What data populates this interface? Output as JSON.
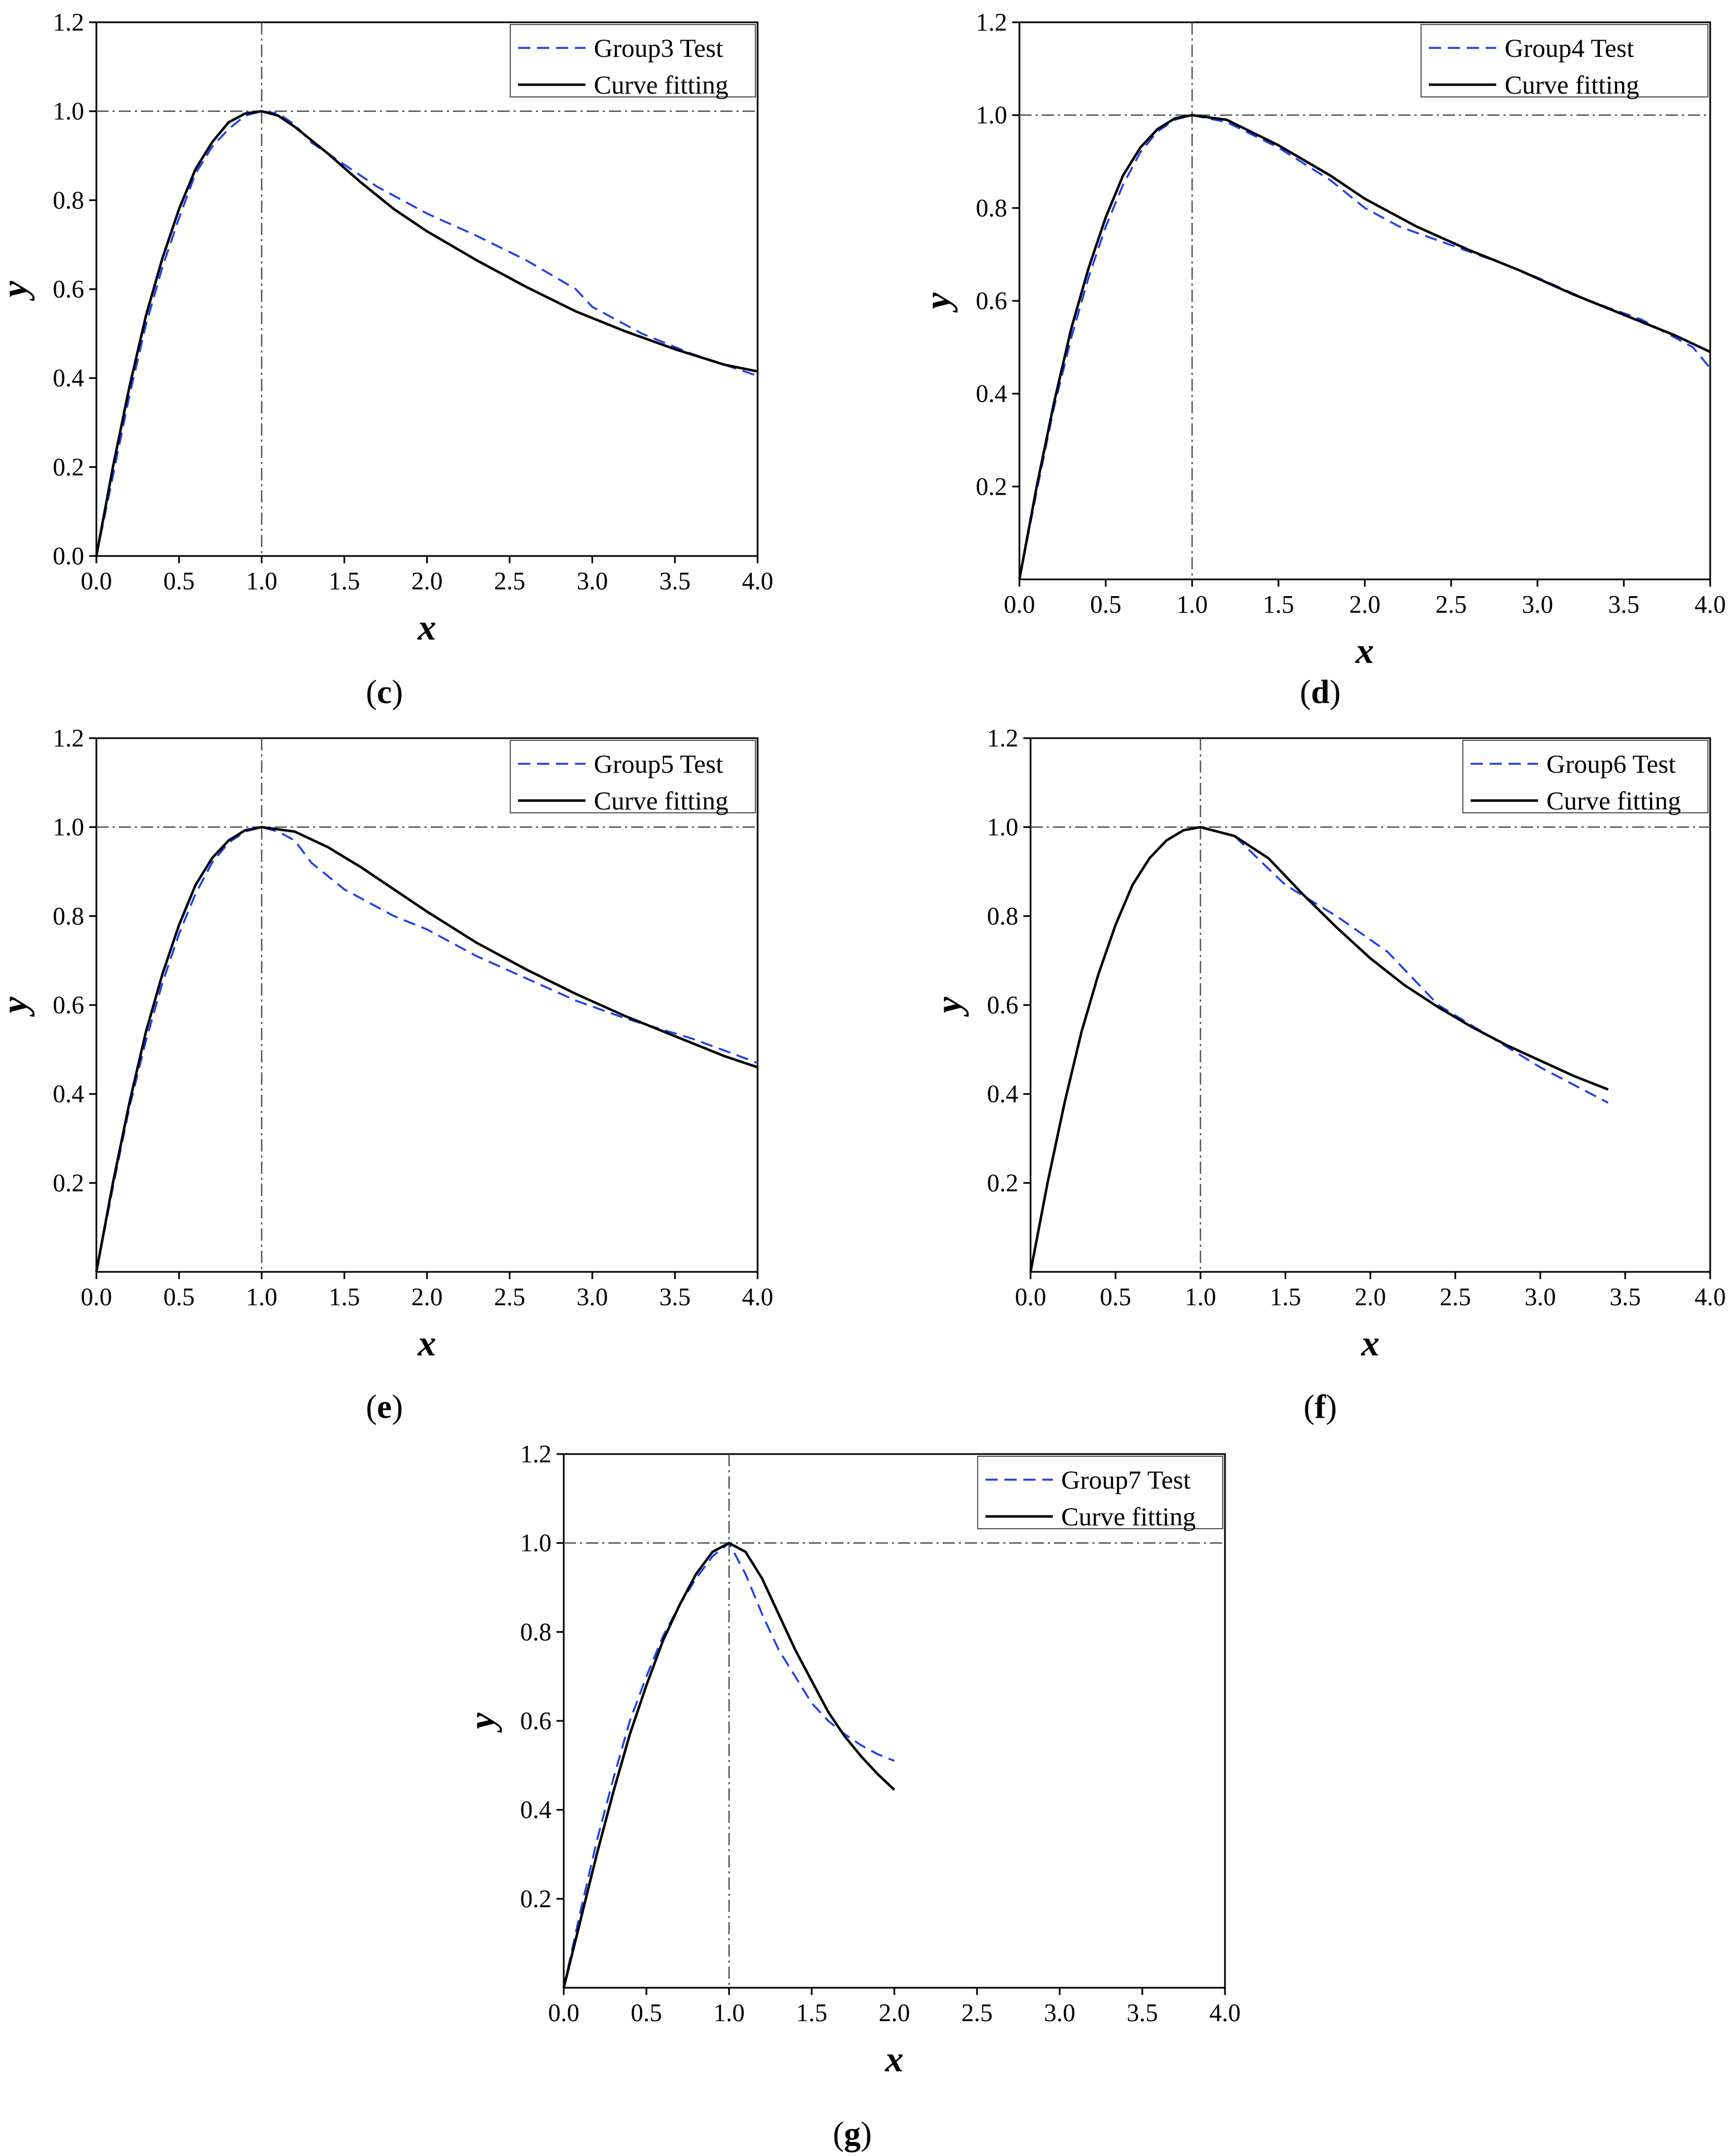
{
  "colors": {
    "test": "#1f3ff0",
    "fit": "#000000",
    "ref": "#555555",
    "axis": "#000000"
  },
  "chart_data": [
    {
      "id": "c",
      "type": "line",
      "caption": "c",
      "xlabel": "x",
      "ylabel": "y",
      "xlim": [
        0,
        4
      ],
      "ylim": [
        0,
        1.2
      ],
      "xticks": [
        "0.0",
        "0.5",
        "1.0",
        "1.5",
        "2.0",
        "2.5",
        "3.0",
        "3.5",
        "4.0"
      ],
      "yticks": [
        "0.0",
        "0.2",
        "0.4",
        "0.6",
        "0.8",
        "1.0",
        "1.2"
      ],
      "reference_lines": {
        "x": 1.0,
        "y": 1.0
      },
      "legend": {
        "position": "top-right",
        "entries": [
          "Group3 Test",
          "Curve fitting"
        ]
      },
      "series": [
        {
          "name": "Group3 Test",
          "style": "dashed",
          "x": [
            0,
            0.1,
            0.2,
            0.3,
            0.4,
            0.5,
            0.6,
            0.7,
            0.8,
            0.9,
            1.0,
            1.1,
            1.2,
            1.3,
            1.5,
            1.7,
            2.0,
            2.3,
            2.6,
            2.9,
            3.0,
            3.3,
            3.6,
            4.0
          ],
          "y": [
            0,
            0.18,
            0.36,
            0.52,
            0.65,
            0.76,
            0.86,
            0.92,
            0.96,
            0.99,
            1.0,
            0.995,
            0.97,
            0.93,
            0.88,
            0.83,
            0.77,
            0.72,
            0.665,
            0.6,
            0.56,
            0.5,
            0.455,
            0.405
          ]
        },
        {
          "name": "Curve fitting",
          "style": "solid",
          "x": [
            0,
            0.1,
            0.2,
            0.3,
            0.4,
            0.5,
            0.6,
            0.7,
            0.8,
            0.9,
            1.0,
            1.1,
            1.2,
            1.4,
            1.6,
            1.8,
            2.0,
            2.3,
            2.6,
            2.9,
            3.2,
            3.5,
            3.8,
            4.0
          ],
          "y": [
            0,
            0.2,
            0.38,
            0.54,
            0.67,
            0.78,
            0.87,
            0.93,
            0.975,
            0.995,
            1.0,
            0.99,
            0.965,
            0.905,
            0.84,
            0.78,
            0.73,
            0.665,
            0.605,
            0.55,
            0.505,
            0.465,
            0.43,
            0.415
          ]
        }
      ]
    },
    {
      "id": "d",
      "type": "line",
      "caption": "d",
      "xlabel": "x",
      "ylabel": "y",
      "xlim": [
        0,
        4
      ],
      "ylim": [
        0,
        1.2
      ],
      "xticks": [
        "0.0",
        "0.5",
        "1.0",
        "1.5",
        "2.0",
        "2.5",
        "3.0",
        "3.5",
        "4.0"
      ],
      "yticks": [
        "0.2",
        "0.4",
        "0.6",
        "0.8",
        "1.0",
        "1.2"
      ],
      "reference_lines": {
        "x": 1.0,
        "y": 1.0
      },
      "legend": {
        "position": "top-right",
        "entries": [
          "Group4 Test",
          "Curve fitting"
        ]
      },
      "series": [
        {
          "name": "Group4 Test",
          "style": "dashed",
          "x": [
            0,
            0.1,
            0.2,
            0.3,
            0.4,
            0.5,
            0.6,
            0.7,
            0.8,
            0.9,
            1.0,
            1.2,
            1.5,
            1.8,
            2.0,
            2.2,
            2.5,
            2.8,
            3.0,
            3.3,
            3.6,
            3.9,
            4.0
          ],
          "y": [
            0,
            0.19,
            0.37,
            0.52,
            0.65,
            0.76,
            0.85,
            0.92,
            0.965,
            0.99,
            1.0,
            0.985,
            0.93,
            0.86,
            0.8,
            0.76,
            0.72,
            0.68,
            0.65,
            0.6,
            0.56,
            0.5,
            0.455
          ]
        },
        {
          "name": "Curve fitting",
          "style": "solid",
          "x": [
            0,
            0.1,
            0.2,
            0.3,
            0.4,
            0.5,
            0.6,
            0.7,
            0.8,
            0.9,
            1.0,
            1.2,
            1.5,
            1.8,
            2.0,
            2.3,
            2.6,
            2.9,
            3.2,
            3.5,
            3.8,
            4.0
          ],
          "y": [
            0,
            0.2,
            0.38,
            0.54,
            0.67,
            0.78,
            0.87,
            0.93,
            0.97,
            0.993,
            1.0,
            0.99,
            0.935,
            0.87,
            0.82,
            0.76,
            0.71,
            0.665,
            0.615,
            0.57,
            0.525,
            0.49
          ]
        }
      ]
    },
    {
      "id": "e",
      "type": "line",
      "caption": "e",
      "xlabel": "x",
      "ylabel": "y",
      "xlim": [
        0,
        4
      ],
      "ylim": [
        0,
        1.2
      ],
      "xticks": [
        "0.0",
        "0.5",
        "1.0",
        "1.5",
        "2.0",
        "2.5",
        "3.0",
        "3.5",
        "4.0"
      ],
      "yticks": [
        "0.2",
        "0.4",
        "0.6",
        "0.8",
        "1.0",
        "1.2"
      ],
      "reference_lines": {
        "x": 1.0,
        "y": 1.0
      },
      "legend": {
        "position": "top-right",
        "entries": [
          "Group5 Test",
          "Curve fitting"
        ]
      },
      "series": [
        {
          "name": "Group5 Test",
          "style": "dashed",
          "x": [
            0,
            0.1,
            0.2,
            0.3,
            0.4,
            0.5,
            0.6,
            0.7,
            0.8,
            0.9,
            1.0,
            1.1,
            1.2,
            1.3,
            1.5,
            1.8,
            2.0,
            2.3,
            2.6,
            2.9,
            3.2,
            3.6,
            4.0
          ],
          "y": [
            0,
            0.19,
            0.37,
            0.52,
            0.65,
            0.76,
            0.85,
            0.92,
            0.965,
            0.99,
            1.0,
            0.99,
            0.97,
            0.92,
            0.86,
            0.8,
            0.77,
            0.71,
            0.66,
            0.61,
            0.57,
            0.525,
            0.47
          ]
        },
        {
          "name": "Curve fitting",
          "style": "solid",
          "x": [
            0,
            0.1,
            0.2,
            0.3,
            0.4,
            0.5,
            0.6,
            0.7,
            0.8,
            0.9,
            1.0,
            1.2,
            1.4,
            1.6,
            1.8,
            2.0,
            2.3,
            2.6,
            2.9,
            3.2,
            3.5,
            3.8,
            4.0
          ],
          "y": [
            0,
            0.2,
            0.38,
            0.54,
            0.67,
            0.78,
            0.87,
            0.93,
            0.97,
            0.993,
            1.0,
            0.99,
            0.955,
            0.91,
            0.86,
            0.81,
            0.74,
            0.68,
            0.625,
            0.575,
            0.53,
            0.485,
            0.46
          ]
        }
      ]
    },
    {
      "id": "f",
      "type": "line",
      "caption": "f",
      "xlabel": "x",
      "ylabel": "y",
      "xlim": [
        0,
        4
      ],
      "ylim": [
        0,
        1.2
      ],
      "xticks": [
        "0.0",
        "0.5",
        "1.0",
        "1.5",
        "2.0",
        "2.5",
        "3.0",
        "3.5",
        "4.0"
      ],
      "yticks": [
        "0.2",
        "0.4",
        "0.6",
        "0.8",
        "1.0",
        "1.2"
      ],
      "reference_lines": {
        "x": 1.0,
        "y": 1.0
      },
      "legend": {
        "position": "top-right",
        "entries": [
          "Group6 Test",
          "Curve fitting"
        ]
      },
      "series": [
        {
          "name": "Group6 Test",
          "style": "dashed",
          "x": [
            0,
            0.1,
            0.2,
            0.3,
            0.4,
            0.5,
            0.6,
            0.7,
            0.8,
            0.9,
            1.0,
            1.2,
            1.5,
            1.8,
            2.1,
            2.4,
            2.7,
            3.0,
            3.2,
            3.4
          ],
          "y": [
            0,
            0.2,
            0.38,
            0.54,
            0.67,
            0.78,
            0.87,
            0.93,
            0.97,
            0.993,
            1.0,
            0.98,
            0.87,
            0.8,
            0.72,
            0.6,
            0.53,
            0.46,
            0.42,
            0.38
          ]
        },
        {
          "name": "Curve fitting",
          "style": "solid",
          "x": [
            0,
            0.1,
            0.2,
            0.3,
            0.4,
            0.5,
            0.6,
            0.7,
            0.8,
            0.9,
            1.0,
            1.2,
            1.4,
            1.6,
            1.8,
            2.0,
            2.2,
            2.4,
            2.6,
            2.8,
            3.0,
            3.2,
            3.4
          ],
          "y": [
            0,
            0.2,
            0.38,
            0.54,
            0.67,
            0.78,
            0.87,
            0.93,
            0.97,
            0.993,
            1.0,
            0.98,
            0.93,
            0.85,
            0.775,
            0.705,
            0.645,
            0.595,
            0.55,
            0.51,
            0.475,
            0.44,
            0.41
          ]
        }
      ]
    },
    {
      "id": "g",
      "type": "line",
      "caption": "g",
      "xlabel": "x",
      "ylabel": "y",
      "xlim": [
        0,
        4
      ],
      "ylim": [
        0,
        1.2
      ],
      "xticks": [
        "0.0",
        "0.5",
        "1.0",
        "1.5",
        "2.0",
        "2.5",
        "3.0",
        "3.5",
        "4.0"
      ],
      "yticks": [
        "0.2",
        "0.4",
        "0.6",
        "0.8",
        "1.0",
        "1.2"
      ],
      "reference_lines": {
        "x": 1.0,
        "y": 1.0
      },
      "legend": {
        "position": "top-right",
        "entries": [
          "Group7 Test",
          "Curve fitting"
        ]
      },
      "series": [
        {
          "name": "Group7 Test",
          "style": "dashed",
          "x": [
            0,
            0.1,
            0.2,
            0.3,
            0.4,
            0.5,
            0.6,
            0.7,
            0.8,
            0.9,
            1.0,
            1.1,
            1.2,
            1.3,
            1.4,
            1.5,
            1.6,
            1.7,
            1.8,
            1.9,
            2.0
          ],
          "y": [
            0,
            0.17,
            0.33,
            0.47,
            0.6,
            0.7,
            0.79,
            0.86,
            0.92,
            0.97,
            1.0,
            0.93,
            0.84,
            0.76,
            0.7,
            0.64,
            0.6,
            0.57,
            0.545,
            0.525,
            0.51
          ]
        },
        {
          "name": "Curve fitting",
          "style": "solid",
          "x": [
            0,
            0.1,
            0.2,
            0.3,
            0.4,
            0.5,
            0.6,
            0.7,
            0.8,
            0.9,
            1.0,
            1.1,
            1.2,
            1.3,
            1.4,
            1.5,
            1.6,
            1.7,
            1.8,
            1.9,
            2.0
          ],
          "y": [
            0,
            0.15,
            0.3,
            0.44,
            0.57,
            0.68,
            0.78,
            0.86,
            0.93,
            0.98,
            1.0,
            0.98,
            0.92,
            0.84,
            0.76,
            0.69,
            0.62,
            0.565,
            0.52,
            0.48,
            0.445
          ]
        }
      ]
    }
  ]
}
